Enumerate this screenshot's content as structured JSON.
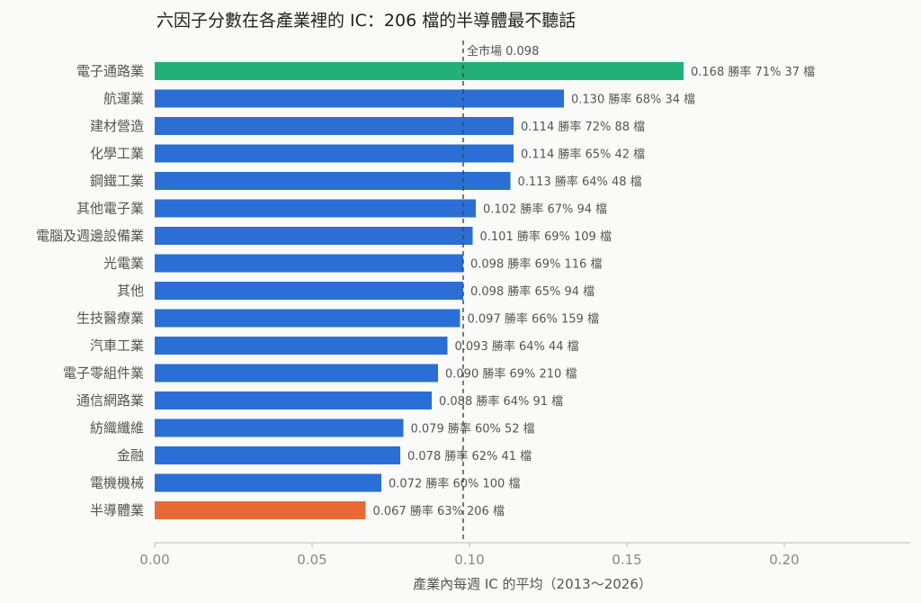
{
  "chart_data": {
    "type": "bar",
    "orientation": "horizontal",
    "title": "六因子分數在各產業裡的 IC：206 檔的半導體最不聽話",
    "xlabel": "產業內每週 IC 的平均（2013～2026）",
    "xlim": [
      0,
      0.24
    ],
    "xticks": [
      "0.00",
      "0.05",
      "0.10",
      "0.15",
      "0.20"
    ],
    "reference_line": {
      "value": 0.098,
      "label": "全市場 0.098"
    },
    "win_rate_prefix": "勝率",
    "count_unit": "檔",
    "colors": {
      "default": "#2b6fd6",
      "highlight_top": "#22b07a",
      "highlight_bottom": "#ea6a35"
    },
    "categories": [
      "電子通路業",
      "航運業",
      "建材營造",
      "化學工業",
      "鋼鐵工業",
      "其他電子業",
      "電腦及週邊設備業",
      "光電業",
      "其他",
      "生技醫療業",
      "汽車工業",
      "電子零組件業",
      "通信網路業",
      "紡織纖維",
      "金融",
      "電機機械",
      "半導體業"
    ],
    "values": [
      0.168,
      0.13,
      0.114,
      0.114,
      0.113,
      0.102,
      0.101,
      0.098,
      0.098,
      0.097,
      0.093,
      0.09,
      0.088,
      0.079,
      0.078,
      0.072,
      0.067
    ],
    "value_labels": [
      "0.168",
      "0.130",
      "0.114",
      "0.114",
      "0.113",
      "0.102",
      "0.101",
      "0.098",
      "0.098",
      "0.097",
      "0.093",
      "0.090",
      "0.088",
      "0.079",
      "0.078",
      "0.072",
      "0.067"
    ],
    "win_rates": [
      "71%",
      "68%",
      "72%",
      "65%",
      "64%",
      "67%",
      "69%",
      "69%",
      "65%",
      "66%",
      "64%",
      "69%",
      "64%",
      "60%",
      "62%",
      "60%",
      "63%"
    ],
    "counts": [
      37,
      34,
      88,
      42,
      48,
      94,
      109,
      116,
      94,
      159,
      44,
      210,
      91,
      52,
      41,
      100,
      206
    ]
  }
}
